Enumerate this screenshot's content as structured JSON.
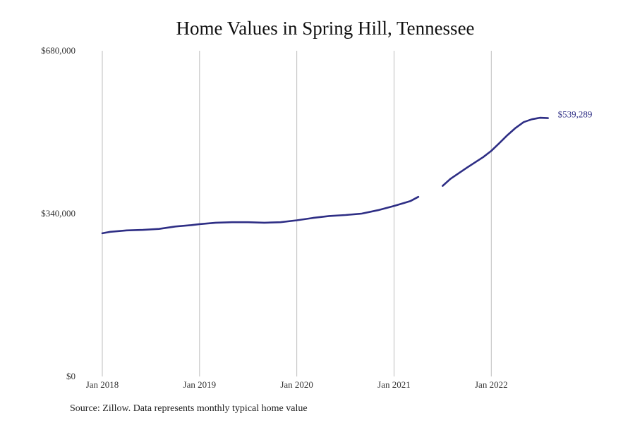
{
  "chart_data": {
    "type": "line",
    "title": "Home Values in Spring Hill, Tennessee",
    "xlabel": "",
    "ylabel": "",
    "y_ticks": [
      {
        "value": 0,
        "label": "$0"
      },
      {
        "value": 340000,
        "label": "$340,000"
      },
      {
        "value": 680000,
        "label": "$680,000"
      }
    ],
    "x_ticks": [
      {
        "value": 2018.0,
        "label": "Jan 2018"
      },
      {
        "value": 2019.0,
        "label": "Jan 2019"
      },
      {
        "value": 2020.0,
        "label": "Jan 2020"
      },
      {
        "value": 2021.0,
        "label": "Jan 2021"
      },
      {
        "value": 2022.0,
        "label": "Jan 2022"
      }
    ],
    "xlim": [
      2018.0,
      2022.6
    ],
    "ylim": [
      0,
      680000
    ],
    "grid": "vertical",
    "line_color": "#2e2e85",
    "series": [
      {
        "segments": [
          {
            "x": [
              2018.0,
              2018.083,
              2018.25,
              2018.417,
              2018.583,
              2018.75,
              2018.917,
              2019.0,
              2019.167,
              2019.333,
              2019.5,
              2019.667,
              2019.833,
              2020.0,
              2020.167,
              2020.333,
              2020.5,
              2020.667,
              2020.833,
              2021.0,
              2021.083,
              2021.167,
              2021.25
            ],
            "y": [
              299000,
              302000,
              305000,
              306000,
              308000,
              313000,
              316000,
              318000,
              321000,
              322000,
              322000,
              321000,
              322000,
              326000,
              331000,
              335000,
              337000,
              340000,
              347000,
              356000,
              361000,
              366000,
              375000
            ]
          },
          {
            "x": [
              2021.5,
              2021.583,
              2021.75,
              2021.917,
              2022.0,
              2022.083,
              2022.167,
              2022.25,
              2022.333,
              2022.417,
              2022.5,
              2022.583
            ],
            "y": [
              398000,
              413000,
              436000,
              458000,
              471000,
              487000,
              504000,
              519000,
              531000,
              537000,
              540000,
              539289
            ]
          }
        ]
      }
    ],
    "end_label": "$539,289"
  },
  "source": "Source: Zillow. Data represents monthly typical home value"
}
